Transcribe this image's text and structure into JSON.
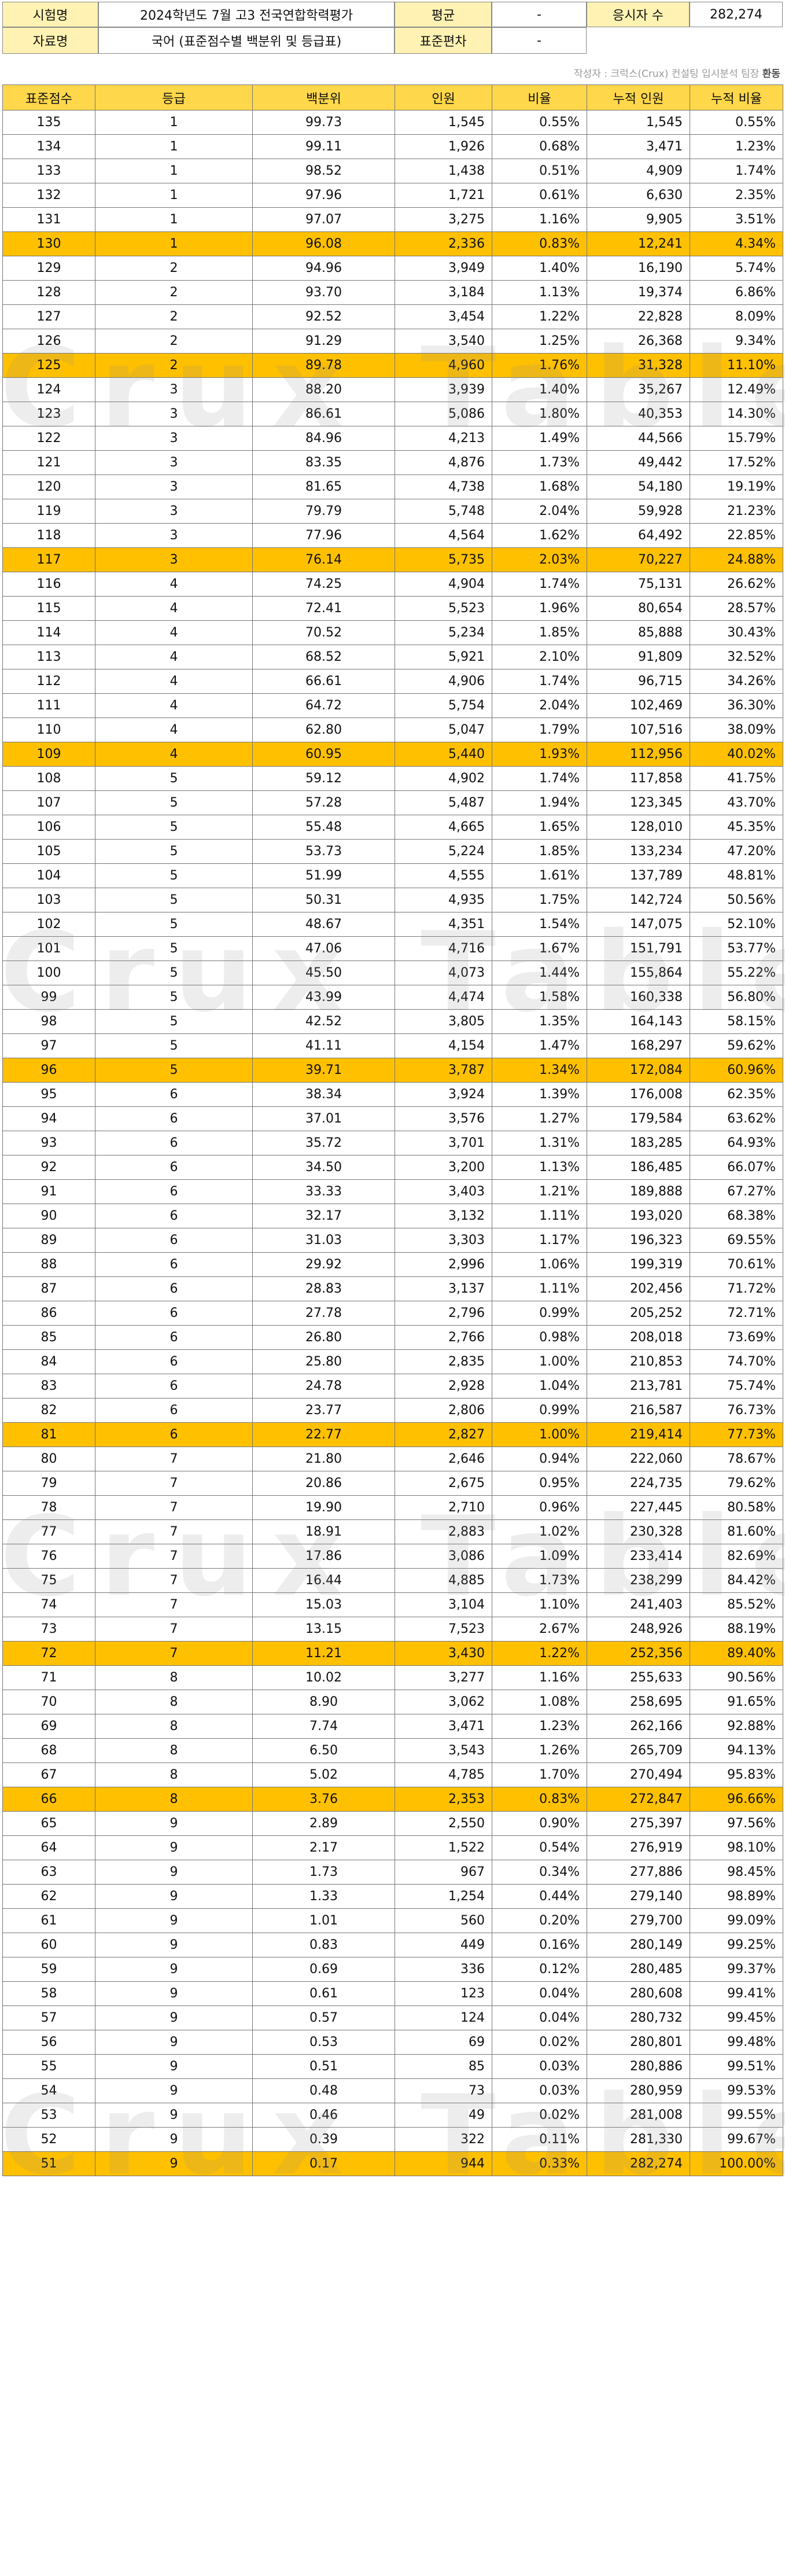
{
  "header": {
    "exam_label": "시험명",
    "exam_value": "2024학년도 7월 고3 전국연합학력평가",
    "avg_label": "평균",
    "avg_value": "-",
    "takers_label": "응시자 수",
    "takers_value": "282,274",
    "data_label": "자료명",
    "data_value": "국어 (표준점수별 백분위 및 등급표)",
    "sd_label": "표준편차",
    "sd_value": "-"
  },
  "source": {
    "text": "작성자 : 크럭스(Crux) 컨설팅 입시분석 팀장 ",
    "name": "환동"
  },
  "watermark": "Crux Table",
  "columns": [
    "표준점수",
    "등급",
    "백분위",
    "인원",
    "비율",
    "누적 인원",
    "누적 비율"
  ],
  "highlight_scores": [
    "130",
    "125",
    "117",
    "109",
    "96",
    "81",
    "72",
    "66",
    "51"
  ],
  "rows": [
    [
      "135",
      "1",
      "99.73",
      "1,545",
      "0.55%",
      "1,545",
      "0.55%"
    ],
    [
      "134",
      "1",
      "99.11",
      "1,926",
      "0.68%",
      "3,471",
      "1.23%"
    ],
    [
      "133",
      "1",
      "98.52",
      "1,438",
      "0.51%",
      "4,909",
      "1.74%"
    ],
    [
      "132",
      "1",
      "97.96",
      "1,721",
      "0.61%",
      "6,630",
      "2.35%"
    ],
    [
      "131",
      "1",
      "97.07",
      "3,275",
      "1.16%",
      "9,905",
      "3.51%"
    ],
    [
      "130",
      "1",
      "96.08",
      "2,336",
      "0.83%",
      "12,241",
      "4.34%"
    ],
    [
      "129",
      "2",
      "94.96",
      "3,949",
      "1.40%",
      "16,190",
      "5.74%"
    ],
    [
      "128",
      "2",
      "93.70",
      "3,184",
      "1.13%",
      "19,374",
      "6.86%"
    ],
    [
      "127",
      "2",
      "92.52",
      "3,454",
      "1.22%",
      "22,828",
      "8.09%"
    ],
    [
      "126",
      "2",
      "91.29",
      "3,540",
      "1.25%",
      "26,368",
      "9.34%"
    ],
    [
      "125",
      "2",
      "89.78",
      "4,960",
      "1.76%",
      "31,328",
      "11.10%"
    ],
    [
      "124",
      "3",
      "88.20",
      "3,939",
      "1.40%",
      "35,267",
      "12.49%"
    ],
    [
      "123",
      "3",
      "86.61",
      "5,086",
      "1.80%",
      "40,353",
      "14.30%"
    ],
    [
      "122",
      "3",
      "84.96",
      "4,213",
      "1.49%",
      "44,566",
      "15.79%"
    ],
    [
      "121",
      "3",
      "83.35",
      "4,876",
      "1.73%",
      "49,442",
      "17.52%"
    ],
    [
      "120",
      "3",
      "81.65",
      "4,738",
      "1.68%",
      "54,180",
      "19.19%"
    ],
    [
      "119",
      "3",
      "79.79",
      "5,748",
      "2.04%",
      "59,928",
      "21.23%"
    ],
    [
      "118",
      "3",
      "77.96",
      "4,564",
      "1.62%",
      "64,492",
      "22.85%"
    ],
    [
      "117",
      "3",
      "76.14",
      "5,735",
      "2.03%",
      "70,227",
      "24.88%"
    ],
    [
      "116",
      "4",
      "74.25",
      "4,904",
      "1.74%",
      "75,131",
      "26.62%"
    ],
    [
      "115",
      "4",
      "72.41",
      "5,523",
      "1.96%",
      "80,654",
      "28.57%"
    ],
    [
      "114",
      "4",
      "70.52",
      "5,234",
      "1.85%",
      "85,888",
      "30.43%"
    ],
    [
      "113",
      "4",
      "68.52",
      "5,921",
      "2.10%",
      "91,809",
      "32.52%"
    ],
    [
      "112",
      "4",
      "66.61",
      "4,906",
      "1.74%",
      "96,715",
      "34.26%"
    ],
    [
      "111",
      "4",
      "64.72",
      "5,754",
      "2.04%",
      "102,469",
      "36.30%"
    ],
    [
      "110",
      "4",
      "62.80",
      "5,047",
      "1.79%",
      "107,516",
      "38.09%"
    ],
    [
      "109",
      "4",
      "60.95",
      "5,440",
      "1.93%",
      "112,956",
      "40.02%"
    ],
    [
      "108",
      "5",
      "59.12",
      "4,902",
      "1.74%",
      "117,858",
      "41.75%"
    ],
    [
      "107",
      "5",
      "57.28",
      "5,487",
      "1.94%",
      "123,345",
      "43.70%"
    ],
    [
      "106",
      "5",
      "55.48",
      "4,665",
      "1.65%",
      "128,010",
      "45.35%"
    ],
    [
      "105",
      "5",
      "53.73",
      "5,224",
      "1.85%",
      "133,234",
      "47.20%"
    ],
    [
      "104",
      "5",
      "51.99",
      "4,555",
      "1.61%",
      "137,789",
      "48.81%"
    ],
    [
      "103",
      "5",
      "50.31",
      "4,935",
      "1.75%",
      "142,724",
      "50.56%"
    ],
    [
      "102",
      "5",
      "48.67",
      "4,351",
      "1.54%",
      "147,075",
      "52.10%"
    ],
    [
      "101",
      "5",
      "47.06",
      "4,716",
      "1.67%",
      "151,791",
      "53.77%"
    ],
    [
      "100",
      "5",
      "45.50",
      "4,073",
      "1.44%",
      "155,864",
      "55.22%"
    ],
    [
      "99",
      "5",
      "43.99",
      "4,474",
      "1.58%",
      "160,338",
      "56.80%"
    ],
    [
      "98",
      "5",
      "42.52",
      "3,805",
      "1.35%",
      "164,143",
      "58.15%"
    ],
    [
      "97",
      "5",
      "41.11",
      "4,154",
      "1.47%",
      "168,297",
      "59.62%"
    ],
    [
      "96",
      "5",
      "39.71",
      "3,787",
      "1.34%",
      "172,084",
      "60.96%"
    ],
    [
      "95",
      "6",
      "38.34",
      "3,924",
      "1.39%",
      "176,008",
      "62.35%"
    ],
    [
      "94",
      "6",
      "37.01",
      "3,576",
      "1.27%",
      "179,584",
      "63.62%"
    ],
    [
      "93",
      "6",
      "35.72",
      "3,701",
      "1.31%",
      "183,285",
      "64.93%"
    ],
    [
      "92",
      "6",
      "34.50",
      "3,200",
      "1.13%",
      "186,485",
      "66.07%"
    ],
    [
      "91",
      "6",
      "33.33",
      "3,403",
      "1.21%",
      "189,888",
      "67.27%"
    ],
    [
      "90",
      "6",
      "32.17",
      "3,132",
      "1.11%",
      "193,020",
      "68.38%"
    ],
    [
      "89",
      "6",
      "31.03",
      "3,303",
      "1.17%",
      "196,323",
      "69.55%"
    ],
    [
      "88",
      "6",
      "29.92",
      "2,996",
      "1.06%",
      "199,319",
      "70.61%"
    ],
    [
      "87",
      "6",
      "28.83",
      "3,137",
      "1.11%",
      "202,456",
      "71.72%"
    ],
    [
      "86",
      "6",
      "27.78",
      "2,796",
      "0.99%",
      "205,252",
      "72.71%"
    ],
    [
      "85",
      "6",
      "26.80",
      "2,766",
      "0.98%",
      "208,018",
      "73.69%"
    ],
    [
      "84",
      "6",
      "25.80",
      "2,835",
      "1.00%",
      "210,853",
      "74.70%"
    ],
    [
      "83",
      "6",
      "24.78",
      "2,928",
      "1.04%",
      "213,781",
      "75.74%"
    ],
    [
      "82",
      "6",
      "23.77",
      "2,806",
      "0.99%",
      "216,587",
      "76.73%"
    ],
    [
      "81",
      "6",
      "22.77",
      "2,827",
      "1.00%",
      "219,414",
      "77.73%"
    ],
    [
      "80",
      "7",
      "21.80",
      "2,646",
      "0.94%",
      "222,060",
      "78.67%"
    ],
    [
      "79",
      "7",
      "20.86",
      "2,675",
      "0.95%",
      "224,735",
      "79.62%"
    ],
    [
      "78",
      "7",
      "19.90",
      "2,710",
      "0.96%",
      "227,445",
      "80.58%"
    ],
    [
      "77",
      "7",
      "18.91",
      "2,883",
      "1.02%",
      "230,328",
      "81.60%"
    ],
    [
      "76",
      "7",
      "17.86",
      "3,086",
      "1.09%",
      "233,414",
      "82.69%"
    ],
    [
      "75",
      "7",
      "16.44",
      "4,885",
      "1.73%",
      "238,299",
      "84.42%"
    ],
    [
      "74",
      "7",
      "15.03",
      "3,104",
      "1.10%",
      "241,403",
      "85.52%"
    ],
    [
      "73",
      "7",
      "13.15",
      "7,523",
      "2.67%",
      "248,926",
      "88.19%"
    ],
    [
      "72",
      "7",
      "11.21",
      "3,430",
      "1.22%",
      "252,356",
      "89.40%"
    ],
    [
      "71",
      "8",
      "10.02",
      "3,277",
      "1.16%",
      "255,633",
      "90.56%"
    ],
    [
      "70",
      "8",
      "8.90",
      "3,062",
      "1.08%",
      "258,695",
      "91.65%"
    ],
    [
      "69",
      "8",
      "7.74",
      "3,471",
      "1.23%",
      "262,166",
      "92.88%"
    ],
    [
      "68",
      "8",
      "6.50",
      "3,543",
      "1.26%",
      "265,709",
      "94.13%"
    ],
    [
      "67",
      "8",
      "5.02",
      "4,785",
      "1.70%",
      "270,494",
      "95.83%"
    ],
    [
      "66",
      "8",
      "3.76",
      "2,353",
      "0.83%",
      "272,847",
      "96.66%"
    ],
    [
      "65",
      "9",
      "2.89",
      "2,550",
      "0.90%",
      "275,397",
      "97.56%"
    ],
    [
      "64",
      "9",
      "2.17",
      "1,522",
      "0.54%",
      "276,919",
      "98.10%"
    ],
    [
      "63",
      "9",
      "1.73",
      "967",
      "0.34%",
      "277,886",
      "98.45%"
    ],
    [
      "62",
      "9",
      "1.33",
      "1,254",
      "0.44%",
      "279,140",
      "98.89%"
    ],
    [
      "61",
      "9",
      "1.01",
      "560",
      "0.20%",
      "279,700",
      "99.09%"
    ],
    [
      "60",
      "9",
      "0.83",
      "449",
      "0.16%",
      "280,149",
      "99.25%"
    ],
    [
      "59",
      "9",
      "0.69",
      "336",
      "0.12%",
      "280,485",
      "99.37%"
    ],
    [
      "58",
      "9",
      "0.61",
      "123",
      "0.04%",
      "280,608",
      "99.41%"
    ],
    [
      "57",
      "9",
      "0.57",
      "124",
      "0.04%",
      "280,732",
      "99.45%"
    ],
    [
      "56",
      "9",
      "0.53",
      "69",
      "0.02%",
      "280,801",
      "99.48%"
    ],
    [
      "55",
      "9",
      "0.51",
      "85",
      "0.03%",
      "280,886",
      "99.51%"
    ],
    [
      "54",
      "9",
      "0.48",
      "73",
      "0.03%",
      "280,959",
      "99.53%"
    ],
    [
      "53",
      "9",
      "0.46",
      "49",
      "0.02%",
      "281,008",
      "99.55%"
    ],
    [
      "52",
      "9",
      "0.39",
      "322",
      "0.11%",
      "281,330",
      "99.67%"
    ],
    [
      "51",
      "9",
      "0.17",
      "944",
      "0.33%",
      "282,274",
      "100.00%"
    ]
  ]
}
